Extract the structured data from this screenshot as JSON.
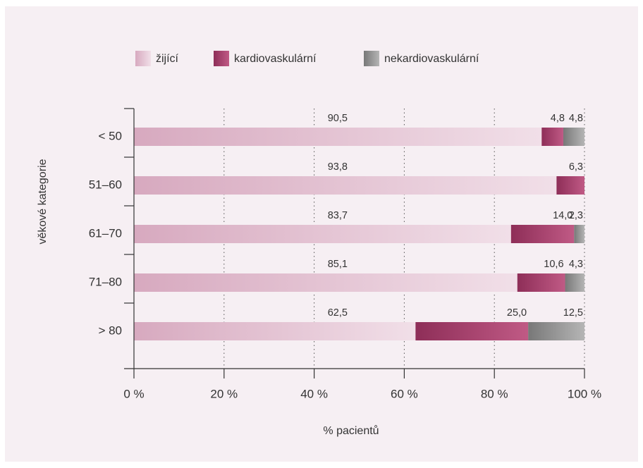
{
  "chart_data": {
    "type": "bar",
    "orientation": "horizontal",
    "stacked": true,
    "title": "",
    "xlabel": "% pacientů",
    "ylabel": "věkové kategorie",
    "xlim": [
      0,
      100
    ],
    "x_ticks": [
      0,
      20,
      40,
      60,
      80,
      100
    ],
    "x_tick_labels": [
      "0 %",
      "20 %",
      "40 %",
      "60 %",
      "80 %",
      "100 %"
    ],
    "grid": "vertical dotted",
    "legend_position": "top",
    "categories": [
      "< 50",
      "51–60",
      "61–70",
      "71–80",
      "> 80"
    ],
    "series": [
      {
        "name": "žijící",
        "values": [
          90.5,
          93.8,
          83.7,
          85.1,
          62.5
        ],
        "labels": [
          "90,5",
          "93,8",
          "83,7",
          "85,1",
          "62,5"
        ],
        "color": "#e3bfd0"
      },
      {
        "name": "kardiovaskulární",
        "values": [
          4.8,
          6.3,
          14.0,
          10.6,
          25.0
        ],
        "labels": [
          "4,8",
          "6,3",
          "14,0",
          "10,6",
          "25,0"
        ],
        "color": "#a23d69"
      },
      {
        "name": "nekardiovaskulární",
        "values": [
          4.8,
          0,
          2.3,
          4.3,
          12.5
        ],
        "labels": [
          "4,8",
          "",
          "2,3",
          "4,3",
          "12,5"
        ],
        "color": "#8f8f8f"
      }
    ]
  }
}
